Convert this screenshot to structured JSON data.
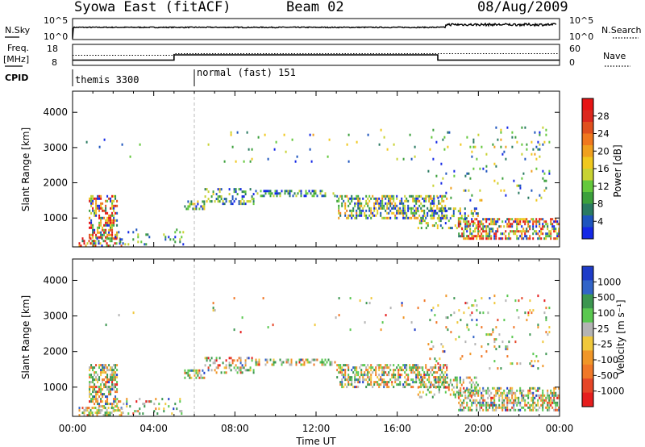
{
  "header": {
    "station": "Syowa East (fitACF)",
    "beam": "Beam 02",
    "date": "08/Aug/2009"
  },
  "top_panels": {
    "nsky_label": "N.Sky",
    "nsky_ticks": [
      "10^5",
      "10^0"
    ],
    "nsearch_label": "N.Search",
    "nsearch_ticks": [
      "10^5",
      "10^0"
    ],
    "freq_label": "Freq.",
    "freq_unit": "[MHz]",
    "freq_ticks": [
      "18",
      "8"
    ],
    "nave_label": "Nave",
    "nave_ticks": [
      "60",
      "0"
    ],
    "cpid_label": "CPID",
    "cpid_segments": [
      {
        "name": "themis 3300",
        "start_hour": 0,
        "end_hour": 6
      },
      {
        "name": "normal (fast) 151",
        "start_hour": 6,
        "end_hour": 24
      }
    ],
    "freq_steps_hours": [
      0,
      5,
      18,
      24
    ],
    "freq_values_mhz": [
      10.5,
      13.0,
      10.5
    ]
  },
  "chart_data": [
    {
      "type": "heatmap",
      "title": "",
      "xlabel": "",
      "ylabel": "Slant Range [km]",
      "xlim_hours": [
        0,
        24
      ],
      "ylim": [
        180,
        4600
      ],
      "yticks": [
        1000,
        2000,
        3000,
        4000
      ],
      "colorbar": {
        "label": "Power [dB]",
        "ticks": [
          4,
          8,
          12,
          16,
          20,
          24,
          28
        ],
        "colors": [
          "#1428e6",
          "#1e55be",
          "#2a7a62",
          "#3ca03c",
          "#64c83c",
          "#c8d232",
          "#f0c81e",
          "#f0a01e",
          "#f0781e",
          "#e0501e",
          "#dc281e",
          "#e61414"
        ]
      }
    },
    {
      "type": "heatmap",
      "title": "",
      "xlabel": "Time UT",
      "ylabel": "Slant Range [km]",
      "xlim_hours": [
        0,
        24
      ],
      "ylim": [
        180,
        4600
      ],
      "yticks": [
        1000,
        2000,
        3000,
        4000
      ],
      "xticks": [
        "00:00",
        "04:00",
        "08:00",
        "12:00",
        "16:00",
        "20:00",
        "00:00"
      ],
      "colorbar": {
        "label": "Velocity [m s⁻¹]",
        "ticks": [
          "1000",
          "500",
          "100",
          "25",
          "-25",
          "-100",
          "-500",
          "-1000"
        ],
        "colors": [
          "#1e3cc8",
          "#3264c8",
          "#3c9650",
          "#5ac850",
          "#b4b4b4",
          "#f0c83c",
          "#f09628",
          "#f07828",
          "#e64628",
          "#e61e1e"
        ]
      }
    }
  ],
  "echo_regions": [
    {
      "t": [
        0.8,
        2.2
      ],
      "r": [
        400,
        1650
      ],
      "d": 0.55,
      "p": 0.75
    },
    {
      "t": [
        0.3,
        2.5
      ],
      "r": [
        200,
        450
      ],
      "d": 0.5,
      "p": 0.85
    },
    {
      "t": [
        2.0,
        5.5
      ],
      "r": [
        200,
        700
      ],
      "d": 0.15,
      "p": 0.2
    },
    {
      "t": [
        5.5,
        6.5
      ],
      "r": [
        1200,
        1500
      ],
      "d": 0.5,
      "p": 0.3
    },
    {
      "t": [
        6.5,
        9.0
      ],
      "r": [
        1350,
        1850
      ],
      "d": 0.35,
      "p": 0.2
    },
    {
      "t": [
        9.0,
        13.0
      ],
      "r": [
        1600,
        1800
      ],
      "d": 0.45,
      "p": 0.15
    },
    {
      "t": [
        13.0,
        18.5
      ],
      "r": [
        950,
        1650
      ],
      "d": 0.5,
      "p": 0.35
    },
    {
      "t": [
        17.0,
        20.0
      ],
      "r": [
        700,
        1300
      ],
      "d": 0.3,
      "p": 0.3
    },
    {
      "t": [
        19.0,
        24.0
      ],
      "r": [
        350,
        1000
      ],
      "d": 0.55,
      "p": 0.65
    },
    {
      "t": [
        17.5,
        23.5
      ],
      "r": [
        1500,
        3600
      ],
      "d": 0.06,
      "p": 0.25
    },
    {
      "t": [
        6.5,
        17.5
      ],
      "r": [
        2500,
        3600
      ],
      "d": 0.02,
      "p": 0.25
    },
    {
      "t": [
        0.5,
        3.5
      ],
      "r": [
        2500,
        3600
      ],
      "d": 0.01,
      "p": 0.3
    }
  ]
}
